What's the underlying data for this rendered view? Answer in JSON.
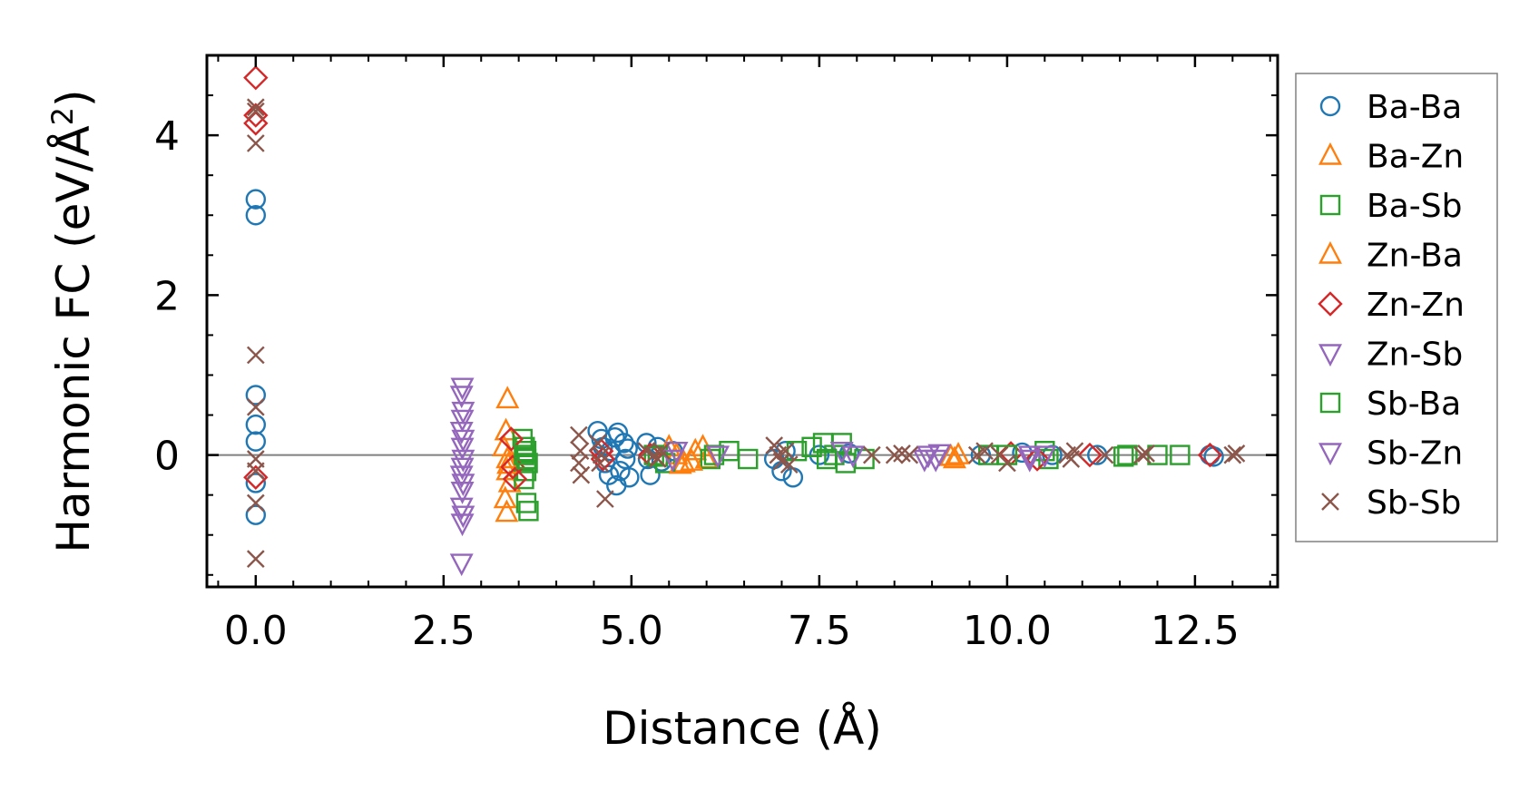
{
  "chart_data": {
    "type": "scatter",
    "title": "",
    "xlabel": "Distance (Å)",
    "ylabel_main": "Harmonic FC (eV/Å",
    "ylabel_sup": "2",
    "ylabel_end": ")",
    "xlim": [
      -0.65,
      13.6
    ],
    "ylim": [
      -1.65,
      5.0
    ],
    "x_ticks": [
      0.0,
      2.5,
      5.0,
      7.5,
      10.0,
      12.5
    ],
    "x_tick_labels": [
      "0.0",
      "2.5",
      "5.0",
      "7.5",
      "10.0",
      "12.5"
    ],
    "y_ticks": [
      0,
      2,
      4
    ],
    "y_tick_labels": [
      "0",
      "2",
      "4"
    ],
    "legend_position": "outside-right",
    "zero_line": true,
    "series": [
      {
        "name": "Ba-Ba",
        "marker": "circle",
        "color": "#1f77b4",
        "points": [
          [
            0,
            3.2
          ],
          [
            0,
            3.0
          ],
          [
            0,
            0.75
          ],
          [
            0,
            0.38
          ],
          [
            0,
            0.17
          ],
          [
            0,
            -0.35
          ],
          [
            0,
            -0.75
          ],
          [
            4.55,
            0.3
          ],
          [
            4.6,
            0.2
          ],
          [
            4.62,
            0.1
          ],
          [
            4.65,
            -0.1
          ],
          [
            4.7,
            -0.25
          ],
          [
            4.72,
            0.05
          ],
          [
            4.78,
            0.22
          ],
          [
            4.8,
            -0.38
          ],
          [
            4.82,
            0.28
          ],
          [
            4.85,
            -0.2
          ],
          [
            4.9,
            0.15
          ],
          [
            4.92,
            -0.05
          ],
          [
            4.95,
            0.08
          ],
          [
            4.97,
            -0.28
          ],
          [
            5.2,
            0.15
          ],
          [
            5.22,
            -0.05
          ],
          [
            5.25,
            -0.25
          ],
          [
            5.35,
            0.1
          ],
          [
            5.4,
            -0.08
          ],
          [
            5.55,
            0.05
          ],
          [
            6.9,
            -0.05
          ],
          [
            7.0,
            -0.2
          ],
          [
            7.05,
            0.05
          ],
          [
            7.15,
            -0.28
          ],
          [
            7.5,
            0.0
          ],
          [
            7.9,
            0.02
          ],
          [
            9.65,
            0.0
          ],
          [
            10.2,
            0.03
          ],
          [
            10.6,
            0.0
          ],
          [
            11.2,
            0.0
          ],
          [
            12.7,
            0.0
          ],
          [
            12.75,
            -0.02
          ]
        ]
      },
      {
        "name": "Ba-Zn",
        "marker": "triangle-up",
        "color": "#ff7f0e",
        "points": [
          [
            3.35,
            0.7
          ],
          [
            3.33,
            0.3
          ],
          [
            3.3,
            0.1
          ],
          [
            3.35,
            -0.2
          ],
          [
            3.38,
            -0.35
          ],
          [
            3.32,
            -0.55
          ],
          [
            3.34,
            -0.72
          ],
          [
            5.5,
            0.1
          ],
          [
            5.6,
            0.0
          ],
          [
            5.7,
            -0.1
          ],
          [
            5.85,
            0.05
          ],
          [
            5.95,
            0.1
          ],
          [
            6.0,
            -0.05
          ],
          [
            9.3,
            -0.05
          ],
          [
            9.35,
            0.0
          ]
        ]
      },
      {
        "name": "Ba-Sb",
        "marker": "square",
        "color": "#2ca02c",
        "points": [
          [
            3.55,
            0.2
          ],
          [
            3.6,
            0.05
          ],
          [
            3.62,
            -0.1
          ],
          [
            3.57,
            -0.3
          ],
          [
            3.6,
            -0.6
          ],
          [
            3.63,
            -0.7
          ],
          [
            3.58,
            0.1
          ],
          [
            3.6,
            -0.2
          ],
          [
            5.3,
            0.0
          ],
          [
            5.45,
            -0.1
          ],
          [
            6.05,
            -0.05
          ],
          [
            6.1,
            0.0
          ],
          [
            6.3,
            0.05
          ],
          [
            6.55,
            -0.05
          ],
          [
            7.2,
            0.05
          ],
          [
            7.4,
            0.1
          ],
          [
            7.55,
            0.15
          ],
          [
            7.7,
            0.0
          ],
          [
            7.8,
            0.15
          ],
          [
            7.85,
            -0.1
          ],
          [
            8.1,
            -0.05
          ],
          [
            9.75,
            0.0
          ],
          [
            10.5,
            0.05
          ],
          [
            10.55,
            -0.05
          ],
          [
            11.6,
            0.0
          ],
          [
            12.0,
            0.0
          ],
          [
            12.3,
            0.0
          ]
        ]
      },
      {
        "name": "Zn-Ba",
        "marker": "triangle-up",
        "color": "#ff7f0e",
        "points": [
          [
            3.35,
            -0.05
          ],
          [
            3.36,
            -0.12
          ],
          [
            5.65,
            -0.12
          ],
          [
            5.8,
            -0.08
          ],
          [
            9.25,
            -0.02
          ]
        ]
      },
      {
        "name": "Zn-Zn",
        "marker": "diamond",
        "color": "#d62728",
        "points": [
          [
            0,
            4.72
          ],
          [
            0,
            4.25
          ],
          [
            0,
            4.15
          ],
          [
            0,
            -0.28
          ],
          [
            3.4,
            0.2
          ],
          [
            3.42,
            -0.15
          ],
          [
            3.45,
            -0.3
          ],
          [
            4.6,
            0.05
          ],
          [
            4.62,
            -0.05
          ],
          [
            5.25,
            0.0
          ],
          [
            10.05,
            0.02
          ],
          [
            10.4,
            -0.05
          ],
          [
            11.1,
            0.0
          ],
          [
            12.7,
            0.0
          ]
        ]
      },
      {
        "name": "Zn-Sb",
        "marker": "triangle-down",
        "color": "#9467bd",
        "points": [
          [
            2.75,
            0.85
          ],
          [
            2.74,
            0.75
          ],
          [
            2.76,
            0.55
          ],
          [
            2.75,
            0.45
          ],
          [
            2.74,
            0.3
          ],
          [
            2.76,
            0.2
          ],
          [
            2.75,
            -0.15
          ],
          [
            2.74,
            -0.25
          ],
          [
            2.76,
            -0.35
          ],
          [
            2.75,
            -0.45
          ],
          [
            2.74,
            -0.65
          ],
          [
            2.76,
            -0.75
          ],
          [
            2.75,
            -0.85
          ],
          [
            2.74,
            -1.35
          ],
          [
            5.6,
            0.05
          ],
          [
            6.15,
            0.0
          ],
          [
            7.8,
            0.05
          ],
          [
            7.95,
            0.0
          ],
          [
            8.95,
            0.0
          ],
          [
            9.05,
            -0.05
          ],
          [
            10.3,
            0.0
          ],
          [
            10.5,
            0.0
          ]
        ]
      },
      {
        "name": "Sb-Ba",
        "marker": "square",
        "color": "#2ca02c",
        "points": [
          [
            3.57,
            0.0
          ],
          [
            3.6,
            -0.05
          ],
          [
            5.35,
            -0.02
          ],
          [
            7.6,
            -0.05
          ],
          [
            10.0,
            0.0
          ],
          [
            11.55,
            -0.02
          ]
        ]
      },
      {
        "name": "Sb-Zn",
        "marker": "triangle-down",
        "color": "#9467bd",
        "points": [
          [
            2.75,
            0.1
          ],
          [
            2.76,
            -0.05
          ],
          [
            5.55,
            -0.05
          ],
          [
            8.9,
            -0.05
          ],
          [
            9.1,
            0.02
          ],
          [
            10.3,
            -0.05
          ]
        ]
      },
      {
        "name": "Sb-Sb",
        "marker": "x",
        "color": "#8c564b",
        "points": [
          [
            0,
            4.35
          ],
          [
            0,
            4.3
          ],
          [
            0,
            3.9
          ],
          [
            0,
            1.25
          ],
          [
            0,
            0.6
          ],
          [
            0,
            -0.05
          ],
          [
            0,
            -0.2
          ],
          [
            0,
            -0.6
          ],
          [
            0,
            -1.3
          ],
          [
            4.3,
            0.25
          ],
          [
            4.32,
            0.05
          ],
          [
            4.3,
            -0.1
          ],
          [
            4.33,
            -0.25
          ],
          [
            4.55,
            0.15
          ],
          [
            4.58,
            -0.1
          ],
          [
            4.6,
            0.0
          ],
          [
            4.65,
            -0.55
          ],
          [
            5.2,
            0.05
          ],
          [
            5.3,
            0.0
          ],
          [
            5.35,
            -0.05
          ],
          [
            5.4,
            0.05
          ],
          [
            6.9,
            0.12
          ],
          [
            6.95,
            0.0
          ],
          [
            7.0,
            -0.08
          ],
          [
            7.05,
            0.05
          ],
          [
            7.1,
            -0.12
          ],
          [
            8.2,
            0.0
          ],
          [
            8.5,
            0.0
          ],
          [
            8.6,
            0.02
          ],
          [
            8.7,
            0.0
          ],
          [
            9.6,
            0.0
          ],
          [
            9.7,
            0.05
          ],
          [
            9.9,
            0.0
          ],
          [
            10.0,
            -0.1
          ],
          [
            10.8,
            0.0
          ],
          [
            10.85,
            -0.05
          ],
          [
            10.9,
            0.05
          ],
          [
            11.3,
            0.0
          ],
          [
            11.8,
            0.0
          ],
          [
            11.85,
            0.02
          ],
          [
            13.0,
            0.0
          ],
          [
            13.05,
            0.02
          ]
        ]
      }
    ]
  }
}
